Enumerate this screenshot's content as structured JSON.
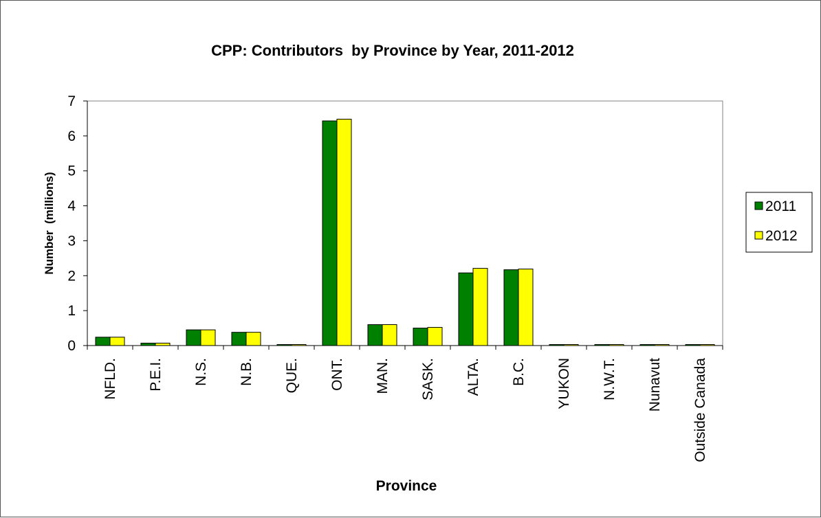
{
  "chart_data": {
    "type": "bar",
    "title": "CPP: Contributors  by Province by Year, 2011-2012",
    "xlabel": "Province",
    "ylabel": "Number  (millions)",
    "ylim": [
      0,
      7
    ],
    "yticks": [
      "0",
      "1",
      "2",
      "3",
      "4",
      "5",
      "6",
      "7"
    ],
    "grid": false,
    "legend_position": "right",
    "categories": [
      "NFLD.",
      "P.E.I.",
      "N.S.",
      "N.B.",
      "QUE.",
      "ONT.",
      "MAN.",
      "SASK.",
      "ALTA.",
      "B.C.",
      "YUKON",
      "N.W.T.",
      "Nunavut",
      "Outside Canada"
    ],
    "series": [
      {
        "name": "2011",
        "color": "#008000",
        "values": [
          0.24,
          0.07,
          0.45,
          0.38,
          0.01,
          6.43,
          0.6,
          0.5,
          2.08,
          2.17,
          0.02,
          0.03,
          0.01,
          0.01
        ]
      },
      {
        "name": "2012",
        "color": "#FFFF00",
        "values": [
          0.24,
          0.07,
          0.45,
          0.38,
          0.01,
          6.48,
          0.6,
          0.52,
          2.21,
          2.19,
          0.02,
          0.03,
          0.01,
          0.01
        ]
      }
    ]
  }
}
